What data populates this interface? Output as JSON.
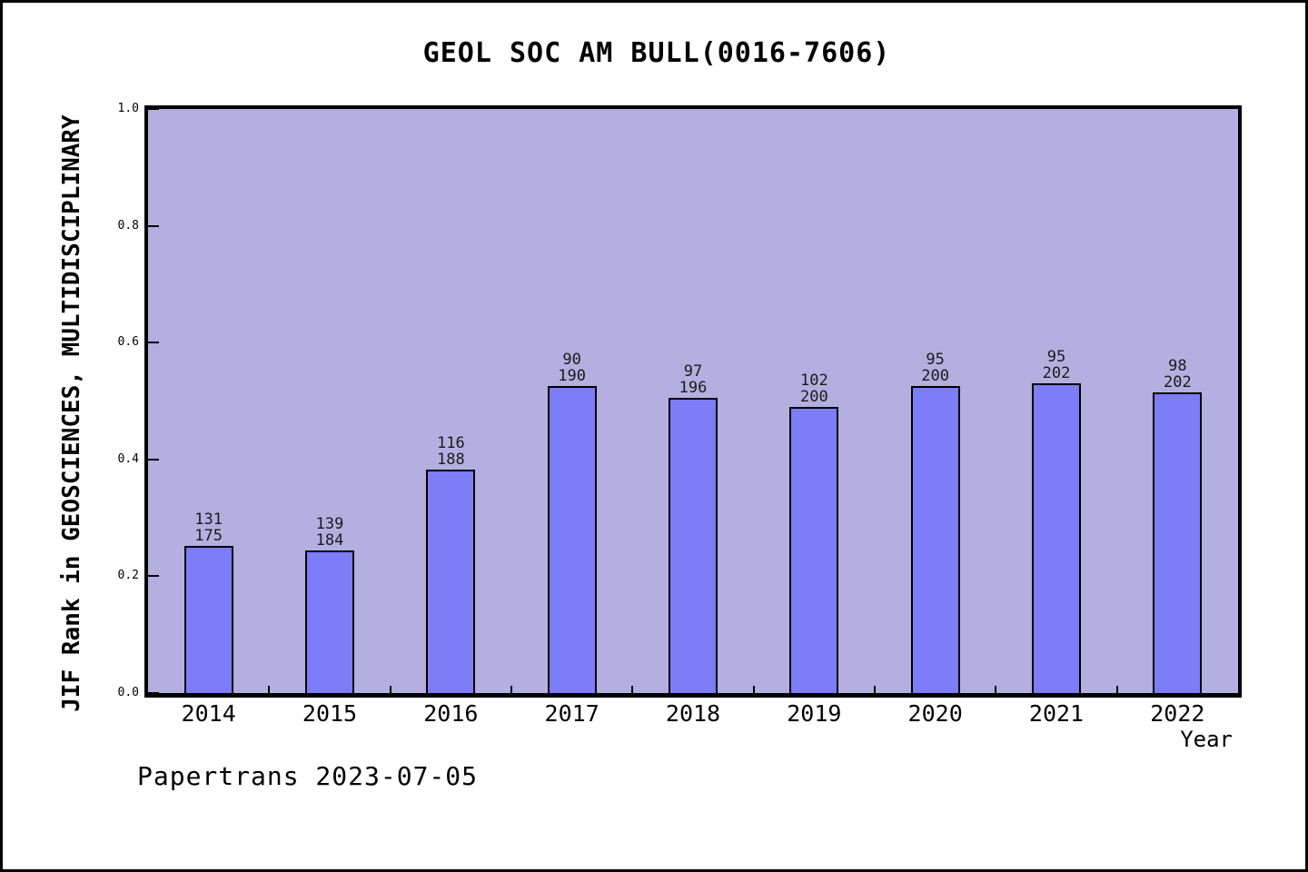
{
  "title": "GEOL SOC AM BULL(0016-7606)",
  "footer": "Papertrans 2023-07-05",
  "chart_data": {
    "type": "bar",
    "title": "GEOL SOC AM BULL(0016-7606)",
    "xlabel": "Year",
    "ylabel": "JIF Rank in GEOSCIENCES, MULTIDISCIPLINARY",
    "categories": [
      "2014",
      "2015",
      "2016",
      "2017",
      "2018",
      "2019",
      "2020",
      "2021",
      "2022"
    ],
    "series": [
      {
        "name": "rank",
        "values": [
          131,
          139,
          116,
          90,
          97,
          102,
          95,
          95,
          98
        ]
      },
      {
        "name": "total",
        "values": [
          175,
          184,
          188,
          190,
          196,
          200,
          200,
          202,
          202
        ]
      }
    ],
    "bar_heights_fraction": [
      0.2514,
      0.2446,
      0.383,
      0.5263,
      0.5051,
      0.49,
      0.525,
      0.5297,
      0.5149
    ],
    "ylim": [
      0.0,
      1.0
    ],
    "ytick_labels": [
      "0.0",
      "0.2",
      "0.4",
      "0.6",
      "0.8",
      "1.0"
    ],
    "ytick_values": [
      0.0,
      0.2,
      0.4,
      0.6,
      0.8,
      1.0
    ],
    "grid": "off",
    "legend": "none",
    "annotation": "Papertrans 2023-07-05",
    "colors": {
      "bar_fill": "#7d7df8",
      "bar_edge": "#000000",
      "plot_background": "#b4afe0",
      "page_background": "#ffffff",
      "text": "#000000"
    }
  }
}
